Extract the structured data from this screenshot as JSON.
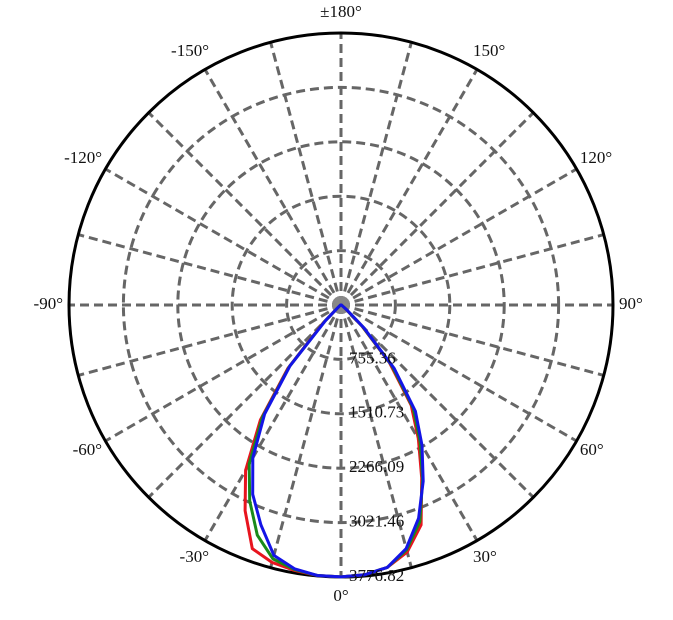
{
  "chart_data": {
    "type": "polar",
    "theta": [
      -180,
      -90,
      -60,
      -50,
      -45,
      -40,
      -35,
      -30,
      -25,
      -20,
      -15,
      -10,
      -5,
      0,
      5,
      10,
      15,
      20,
      25,
      30,
      35,
      40,
      45,
      50,
      60,
      90,
      180
    ],
    "series": [
      {
        "color": "#e8141e",
        "values": [
          0,
          5,
          20,
          60,
          350,
          1150,
          1950,
          2650,
          3150,
          3600,
          3700,
          3740,
          3770,
          3776,
          3760,
          3700,
          3550,
          3250,
          2650,
          2150,
          1700,
          1050,
          400,
          80,
          20,
          5,
          0
        ]
      },
      {
        "color": "#1a8a1a",
        "values": [
          0,
          5,
          20,
          60,
          320,
          1120,
          1900,
          2550,
          3000,
          3400,
          3650,
          3730,
          3770,
          3776,
          3760,
          3700,
          3520,
          3200,
          2680,
          2200,
          1750,
          1100,
          420,
          90,
          20,
          5,
          0
        ]
      },
      {
        "color": "#1414e6",
        "values": [
          0,
          5,
          20,
          60,
          300,
          1100,
          1850,
          2450,
          2900,
          3250,
          3600,
          3720,
          3770,
          3776,
          3760,
          3700,
          3500,
          3150,
          2700,
          2250,
          1800,
          1150,
          450,
          100,
          20,
          5,
          0
        ]
      }
    ],
    "rlim": [
      0,
      3776.82
    ],
    "rticks": [
      755.36,
      1510.73,
      2266.09,
      3021.46,
      3776.82
    ],
    "thetaticks": [
      {
        "value": 0,
        "label": "0°"
      },
      {
        "value": 30,
        "label": "30°"
      },
      {
        "value": 60,
        "label": "60°"
      },
      {
        "value": 90,
        "label": "90°"
      },
      {
        "value": 120,
        "label": "120°"
      },
      {
        "value": 150,
        "label": "150°"
      },
      {
        "value": 180,
        "label": "±180°"
      },
      {
        "value": -150,
        "label": "-150°"
      },
      {
        "value": -120,
        "label": "-120°"
      },
      {
        "value": -90,
        "label": "-90°"
      },
      {
        "value": -60,
        "label": "-60°"
      },
      {
        "value": -30,
        "label": "-30°"
      }
    ],
    "grid": true
  }
}
